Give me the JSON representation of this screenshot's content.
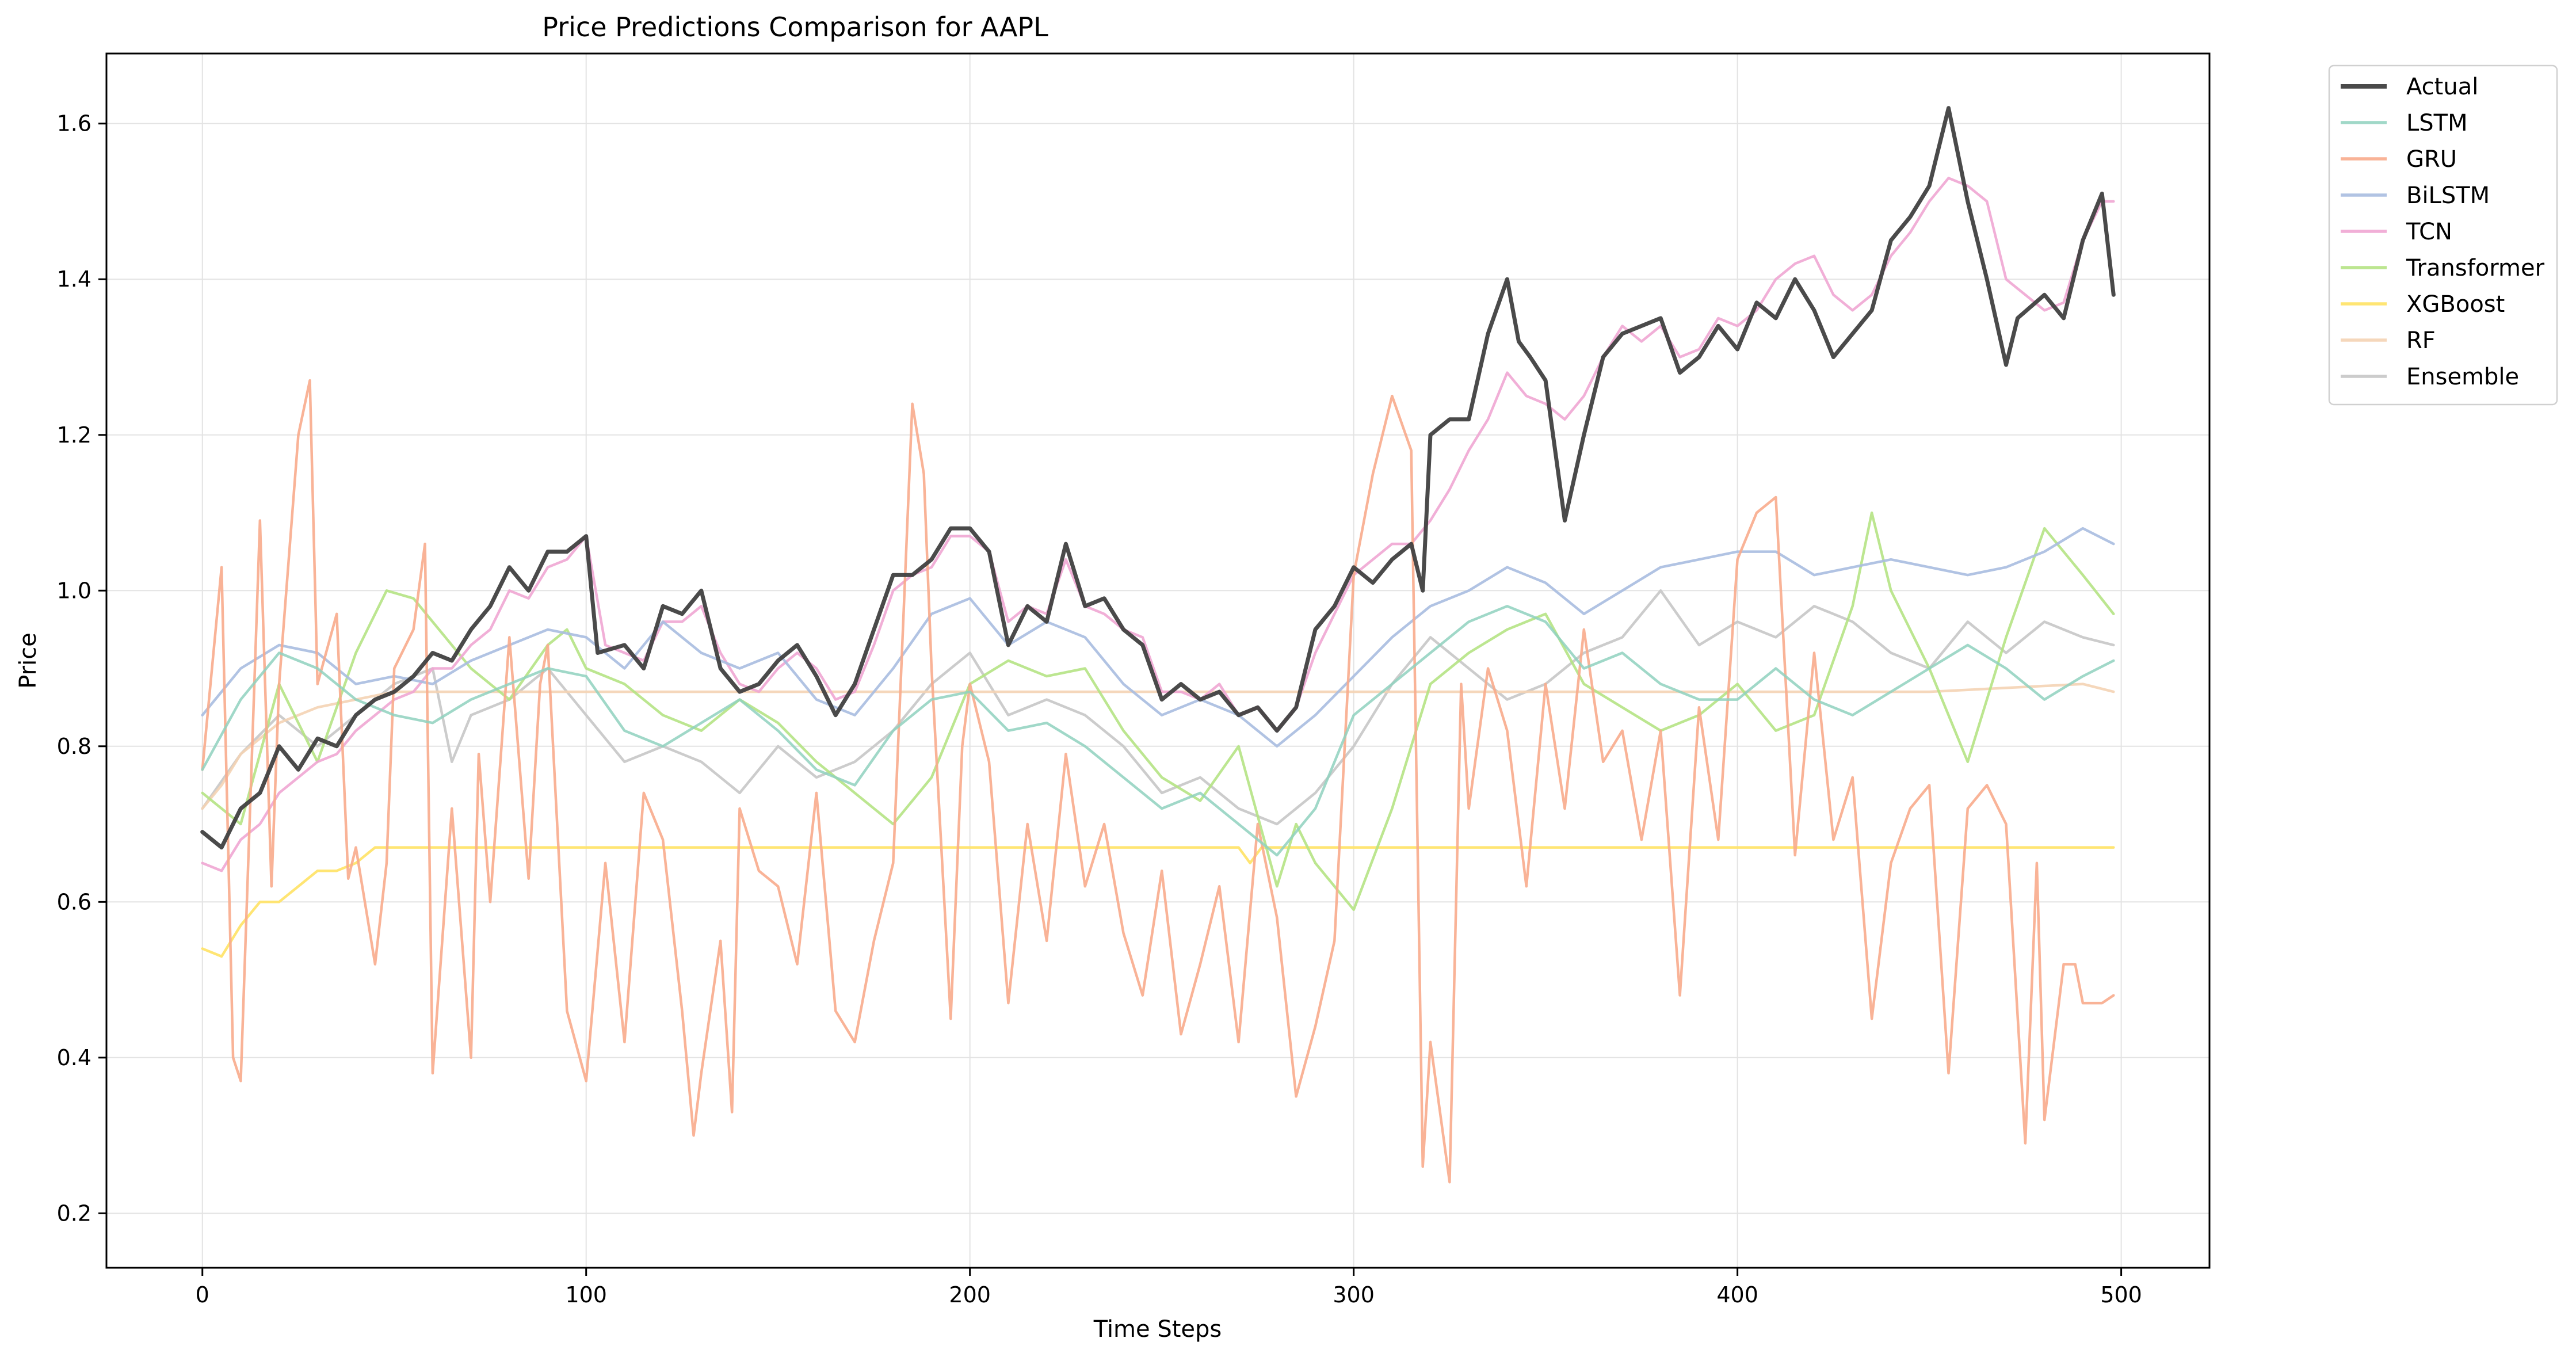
{
  "chart_data": {
    "type": "line",
    "title": "Price Predictions Comparison for AAPL",
    "xlabel": "Time Steps",
    "ylabel": "Price",
    "xlim": [
      -25,
      523
    ],
    "ylim": [
      0.13,
      1.69
    ],
    "xticks": [
      0,
      100,
      200,
      300,
      400,
      500
    ],
    "yticks": [
      0.2,
      0.4,
      0.6,
      0.8,
      1.0,
      1.2,
      1.4,
      1.6
    ],
    "grid": true,
    "legend_position": "outside-top-right",
    "series": [
      {
        "name": "Actual",
        "color": "#404040",
        "width": 7,
        "opacity": 0.95,
        "x": [
          0,
          5,
          10,
          15,
          20,
          25,
          30,
          35,
          40,
          45,
          50,
          55,
          60,
          65,
          70,
          75,
          80,
          85,
          90,
          95,
          100,
          103,
          110,
          115,
          120,
          125,
          130,
          135,
          140,
          145,
          150,
          155,
          160,
          165,
          170,
          175,
          180,
          185,
          190,
          195,
          200,
          205,
          210,
          215,
          220,
          225,
          230,
          235,
          240,
          245,
          250,
          255,
          260,
          265,
          270,
          275,
          280,
          285,
          290,
          295,
          300,
          305,
          310,
          315,
          318,
          320,
          325,
          330,
          335,
          340,
          343,
          346,
          350,
          355,
          360,
          365,
          370,
          375,
          380,
          385,
          390,
          395,
          400,
          405,
          410,
          415,
          420,
          425,
          430,
          435,
          440,
          445,
          450,
          455,
          460,
          465,
          470,
          473,
          480,
          485,
          490,
          495,
          498
        ],
        "y": [
          0.69,
          0.67,
          0.72,
          0.74,
          0.8,
          0.77,
          0.81,
          0.8,
          0.84,
          0.86,
          0.87,
          0.89,
          0.92,
          0.91,
          0.95,
          0.98,
          1.03,
          1.0,
          1.05,
          1.05,
          1.07,
          0.92,
          0.93,
          0.9,
          0.98,
          0.97,
          1.0,
          0.9,
          0.87,
          0.88,
          0.91,
          0.93,
          0.89,
          0.84,
          0.88,
          0.95,
          1.02,
          1.02,
          1.04,
          1.08,
          1.08,
          1.05,
          0.93,
          0.98,
          0.96,
          1.06,
          0.98,
          0.99,
          0.95,
          0.93,
          0.86,
          0.88,
          0.86,
          0.87,
          0.84,
          0.85,
          0.82,
          0.85,
          0.95,
          0.98,
          1.03,
          1.01,
          1.04,
          1.06,
          1.0,
          1.2,
          1.22,
          1.22,
          1.33,
          1.4,
          1.32,
          1.3,
          1.27,
          1.09,
          1.2,
          1.3,
          1.33,
          1.34,
          1.35,
          1.28,
          1.3,
          1.34,
          1.31,
          1.37,
          1.35,
          1.4,
          1.36,
          1.3,
          1.33,
          1.36,
          1.45,
          1.48,
          1.52,
          1.62,
          1.5,
          1.4,
          1.29,
          1.35,
          1.38,
          1.35,
          1.45,
          1.51,
          1.38
        ]
      },
      {
        "name": "LSTM",
        "color": "#8fd1be",
        "width": 4.5,
        "opacity": 0.85,
        "x": [
          0,
          10,
          20,
          30,
          40,
          50,
          60,
          70,
          80,
          90,
          100,
          110,
          120,
          130,
          140,
          150,
          160,
          170,
          180,
          190,
          200,
          210,
          220,
          230,
          240,
          250,
          260,
          270,
          280,
          290,
          300,
          310,
          320,
          330,
          340,
          350,
          360,
          370,
          380,
          390,
          400,
          410,
          420,
          430,
          440,
          450,
          460,
          470,
          480,
          490,
          498
        ],
        "y": [
          0.77,
          0.86,
          0.92,
          0.9,
          0.86,
          0.84,
          0.83,
          0.86,
          0.88,
          0.9,
          0.89,
          0.82,
          0.8,
          0.83,
          0.86,
          0.82,
          0.77,
          0.75,
          0.82,
          0.86,
          0.87,
          0.82,
          0.83,
          0.8,
          0.76,
          0.72,
          0.74,
          0.7,
          0.66,
          0.72,
          0.84,
          0.88,
          0.92,
          0.96,
          0.98,
          0.96,
          0.9,
          0.92,
          0.88,
          0.86,
          0.86,
          0.9,
          0.86,
          0.84,
          0.87,
          0.9,
          0.93,
          0.9,
          0.86,
          0.89,
          0.91
        ]
      },
      {
        "name": "GRU",
        "color": "#f8ab8c",
        "width": 4.5,
        "opacity": 0.9,
        "x": [
          0,
          5,
          8,
          10,
          15,
          18,
          20,
          25,
          28,
          30,
          35,
          38,
          40,
          45,
          48,
          50,
          55,
          58,
          60,
          65,
          70,
          72,
          75,
          80,
          85,
          88,
          90,
          95,
          100,
          105,
          110,
          115,
          120,
          125,
          128,
          130,
          135,
          138,
          140,
          145,
          150,
          155,
          160,
          165,
          170,
          175,
          180,
          185,
          188,
          190,
          195,
          198,
          200,
          205,
          210,
          215,
          220,
          225,
          230,
          235,
          240,
          245,
          250,
          255,
          260,
          265,
          270,
          275,
          280,
          285,
          290,
          295,
          300,
          305,
          310,
          315,
          318,
          320,
          325,
          328,
          330,
          335,
          340,
          345,
          350,
          355,
          360,
          365,
          370,
          375,
          380,
          385,
          390,
          395,
          400,
          405,
          410,
          415,
          420,
          425,
          430,
          435,
          440,
          445,
          450,
          455,
          460,
          465,
          470,
          475,
          478,
          480,
          485,
          488,
          490,
          495,
          498
        ],
        "y": [
          0.77,
          1.03,
          0.4,
          0.37,
          1.09,
          0.62,
          0.88,
          1.2,
          1.27,
          0.88,
          0.97,
          0.63,
          0.67,
          0.52,
          0.65,
          0.9,
          0.95,
          1.06,
          0.38,
          0.72,
          0.4,
          0.79,
          0.6,
          0.94,
          0.63,
          0.88,
          0.93,
          0.46,
          0.37,
          0.65,
          0.42,
          0.74,
          0.68,
          0.46,
          0.3,
          0.38,
          0.55,
          0.33,
          0.72,
          0.64,
          0.62,
          0.52,
          0.74,
          0.46,
          0.42,
          0.55,
          0.65,
          1.24,
          1.15,
          0.9,
          0.45,
          0.8,
          0.88,
          0.78,
          0.47,
          0.7,
          0.55,
          0.79,
          0.62,
          0.7,
          0.56,
          0.48,
          0.64,
          0.43,
          0.52,
          0.62,
          0.42,
          0.7,
          0.58,
          0.35,
          0.44,
          0.55,
          1.02,
          1.15,
          1.25,
          1.18,
          0.26,
          0.42,
          0.24,
          0.88,
          0.72,
          0.9,
          0.82,
          0.62,
          0.88,
          0.72,
          0.95,
          0.78,
          0.82,
          0.68,
          0.82,
          0.48,
          0.85,
          0.68,
          1.04,
          1.1,
          1.12,
          0.66,
          0.92,
          0.68,
          0.76,
          0.45,
          0.65,
          0.72,
          0.75,
          0.38,
          0.72,
          0.75,
          0.7,
          0.29,
          0.65,
          0.32,
          0.52,
          0.52,
          0.47,
          0.47,
          0.48
        ]
      },
      {
        "name": "BiLSTM",
        "color": "#a9bde0",
        "width": 4.5,
        "opacity": 0.9,
        "x": [
          0,
          10,
          20,
          30,
          40,
          50,
          60,
          70,
          80,
          90,
          100,
          110,
          120,
          130,
          140,
          150,
          160,
          170,
          180,
          190,
          200,
          210,
          220,
          230,
          240,
          250,
          260,
          270,
          280,
          290,
          300,
          310,
          320,
          330,
          340,
          350,
          360,
          370,
          380,
          390,
          400,
          410,
          420,
          430,
          440,
          450,
          460,
          470,
          480,
          490,
          498
        ],
        "y": [
          0.84,
          0.9,
          0.93,
          0.92,
          0.88,
          0.89,
          0.88,
          0.91,
          0.93,
          0.95,
          0.94,
          0.9,
          0.96,
          0.92,
          0.9,
          0.92,
          0.86,
          0.84,
          0.9,
          0.97,
          0.99,
          0.93,
          0.96,
          0.94,
          0.88,
          0.84,
          0.86,
          0.84,
          0.8,
          0.84,
          0.89,
          0.94,
          0.98,
          1.0,
          1.03,
          1.01,
          0.97,
          1.0,
          1.03,
          1.04,
          1.05,
          1.05,
          1.02,
          1.03,
          1.04,
          1.03,
          1.02,
          1.03,
          1.05,
          1.08,
          1.06
        ]
      },
      {
        "name": "TCN",
        "color": "#f0a6d3",
        "width": 4.5,
        "opacity": 0.9,
        "x": [
          0,
          5,
          10,
          15,
          20,
          25,
          30,
          35,
          40,
          45,
          50,
          55,
          60,
          65,
          70,
          75,
          80,
          85,
          90,
          95,
          100,
          105,
          110,
          115,
          120,
          125,
          130,
          135,
          140,
          145,
          150,
          155,
          160,
          165,
          170,
          175,
          180,
          185,
          190,
          195,
          200,
          205,
          210,
          215,
          220,
          225,
          230,
          235,
          240,
          245,
          250,
          255,
          260,
          265,
          270,
          275,
          280,
          285,
          290,
          295,
          300,
          305,
          310,
          315,
          320,
          325,
          330,
          335,
          340,
          345,
          350,
          355,
          360,
          365,
          370,
          375,
          380,
          385,
          390,
          395,
          400,
          405,
          410,
          415,
          420,
          425,
          430,
          435,
          440,
          445,
          450,
          455,
          460,
          465,
          470,
          475,
          480,
          485,
          490,
          495,
          498
        ],
        "y": [
          0.65,
          0.64,
          0.68,
          0.7,
          0.74,
          0.76,
          0.78,
          0.79,
          0.82,
          0.84,
          0.86,
          0.87,
          0.9,
          0.9,
          0.93,
          0.95,
          1.0,
          0.99,
          1.03,
          1.04,
          1.07,
          0.93,
          0.92,
          0.91,
          0.96,
          0.96,
          0.98,
          0.92,
          0.88,
          0.87,
          0.9,
          0.92,
          0.9,
          0.86,
          0.87,
          0.93,
          1.0,
          1.02,
          1.03,
          1.07,
          1.07,
          1.05,
          0.96,
          0.98,
          0.97,
          1.04,
          0.98,
          0.97,
          0.95,
          0.94,
          0.87,
          0.87,
          0.86,
          0.88,
          0.84,
          0.85,
          0.82,
          0.85,
          0.92,
          0.97,
          1.02,
          1.04,
          1.06,
          1.06,
          1.09,
          1.13,
          1.18,
          1.22,
          1.28,
          1.25,
          1.24,
          1.22,
          1.25,
          1.3,
          1.34,
          1.32,
          1.34,
          1.3,
          1.31,
          1.35,
          1.34,
          1.36,
          1.4,
          1.42,
          1.43,
          1.38,
          1.36,
          1.38,
          1.43,
          1.46,
          1.5,
          1.53,
          1.52,
          1.5,
          1.4,
          1.38,
          1.36,
          1.37,
          1.45,
          1.5,
          1.5
        ]
      },
      {
        "name": "Transformer",
        "color": "#b5e384",
        "width": 4.5,
        "opacity": 0.9,
        "x": [
          0,
          10,
          20,
          30,
          40,
          48,
          55,
          60,
          70,
          80,
          90,
          95,
          100,
          110,
          120,
          130,
          140,
          150,
          160,
          170,
          180,
          190,
          200,
          210,
          220,
          230,
          240,
          250,
          260,
          270,
          280,
          285,
          290,
          300,
          310,
          320,
          330,
          340,
          350,
          360,
          370,
          380,
          390,
          400,
          410,
          420,
          430,
          435,
          440,
          450,
          460,
          470,
          480,
          490,
          498
        ],
        "y": [
          0.74,
          0.7,
          0.88,
          0.78,
          0.92,
          1.0,
          0.99,
          0.96,
          0.9,
          0.86,
          0.93,
          0.95,
          0.9,
          0.88,
          0.84,
          0.82,
          0.86,
          0.83,
          0.78,
          0.74,
          0.7,
          0.76,
          0.88,
          0.91,
          0.89,
          0.9,
          0.82,
          0.76,
          0.73,
          0.8,
          0.62,
          0.7,
          0.65,
          0.59,
          0.72,
          0.88,
          0.92,
          0.95,
          0.97,
          0.88,
          0.85,
          0.82,
          0.84,
          0.88,
          0.82,
          0.84,
          0.98,
          1.1,
          1.0,
          0.9,
          0.78,
          0.94,
          1.08,
          1.02,
          0.97
        ]
      },
      {
        "name": "XGBoost",
        "color": "#ffe46b",
        "width": 4.5,
        "opacity": 0.95,
        "x": [
          0,
          5,
          10,
          15,
          20,
          25,
          30,
          35,
          40,
          45,
          50,
          100,
          150,
          200,
          250,
          265,
          270,
          273,
          276,
          280,
          290,
          300,
          350,
          400,
          450,
          498
        ],
        "y": [
          0.54,
          0.53,
          0.57,
          0.6,
          0.6,
          0.62,
          0.64,
          0.64,
          0.65,
          0.67,
          0.67,
          0.67,
          0.67,
          0.67,
          0.67,
          0.67,
          0.67,
          0.65,
          0.67,
          0.67,
          0.67,
          0.67,
          0.67,
          0.67,
          0.67,
          0.67
        ]
      },
      {
        "name": "RF",
        "color": "#f4d3b4",
        "width": 4.5,
        "opacity": 0.9,
        "x": [
          0,
          5,
          10,
          15,
          20,
          30,
          40,
          50,
          60,
          80,
          100,
          150,
          200,
          250,
          300,
          350,
          400,
          450,
          490,
          498
        ],
        "y": [
          0.72,
          0.75,
          0.79,
          0.81,
          0.83,
          0.85,
          0.86,
          0.87,
          0.87,
          0.87,
          0.87,
          0.87,
          0.87,
          0.87,
          0.87,
          0.87,
          0.87,
          0.87,
          0.88,
          0.87
        ]
      },
      {
        "name": "Ensemble",
        "color": "#c9c9c9",
        "width": 4.5,
        "opacity": 0.95,
        "x": [
          0,
          10,
          20,
          30,
          40,
          50,
          60,
          65,
          70,
          80,
          90,
          100,
          110,
          120,
          130,
          140,
          150,
          160,
          170,
          180,
          190,
          200,
          210,
          220,
          230,
          240,
          250,
          260,
          270,
          280,
          290,
          300,
          310,
          320,
          330,
          340,
          350,
          360,
          370,
          380,
          390,
          400,
          410,
          420,
          430,
          440,
          450,
          460,
          470,
          480,
          490,
          498
        ],
        "y": [
          0.72,
          0.79,
          0.84,
          0.8,
          0.84,
          0.88,
          0.9,
          0.78,
          0.84,
          0.86,
          0.9,
          0.84,
          0.78,
          0.8,
          0.78,
          0.74,
          0.8,
          0.76,
          0.78,
          0.82,
          0.88,
          0.92,
          0.84,
          0.86,
          0.84,
          0.8,
          0.74,
          0.76,
          0.72,
          0.7,
          0.74,
          0.8,
          0.88,
          0.94,
          0.9,
          0.86,
          0.88,
          0.92,
          0.94,
          1.0,
          0.93,
          0.96,
          0.94,
          0.98,
          0.96,
          0.92,
          0.9,
          0.96,
          0.92,
          0.96,
          0.94,
          0.93
        ]
      }
    ]
  }
}
